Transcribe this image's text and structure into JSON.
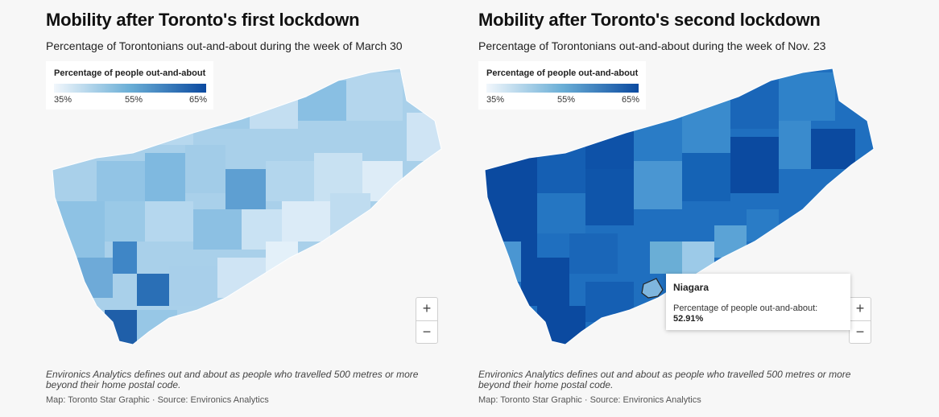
{
  "maps": [
    {
      "title": "Mobility after Toronto's first lockdown",
      "subtitle": "Percentage of Torontonians out-and-about during the week of March 30",
      "legend": {
        "title": "Percentage of people out-and-about",
        "ticks": [
          "35%",
          "55%",
          "65%"
        ]
      },
      "footnote": "Environics Analytics defines out and about as people who travelled 500 metres or more beyond their home postal code.",
      "credit": "Map: Toronto Star Graphic · Source: Environics Analytics",
      "zoom_in": "+",
      "zoom_out": "−",
      "base_color": "#a9d0ea"
    },
    {
      "title": "Mobility after Toronto's second lockdown",
      "subtitle": "Percentage of Torontonians out-and-about during the week of Nov. 23",
      "legend": {
        "title": "Percentage of people out-and-about",
        "ticks": [
          "35%",
          "55%",
          "65%"
        ]
      },
      "footnote": "Environics Analytics defines out and about as people who travelled 500 metres or more beyond their home postal code.",
      "credit": "Map: Toronto Star Graphic · Source: Environics Analytics",
      "zoom_in": "+",
      "zoom_out": "−",
      "base_color": "#1f6fbf",
      "tooltip": {
        "name": "Niagara",
        "label": "Percentage of people out-and-about:",
        "value": "52.91%"
      }
    }
  ],
  "colors": {
    "scale_low": "#f2f7fc",
    "scale_mid": "#6aaed6",
    "scale_high": "#0b4aa0",
    "background": "#f7f7f7"
  }
}
